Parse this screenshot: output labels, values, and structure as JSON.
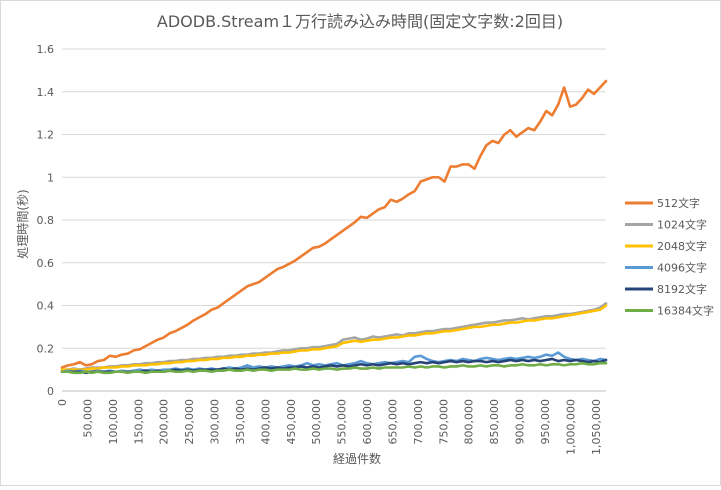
{
  "chart_data": {
    "type": "line",
    "title": "ADODB.Stream１万行読み込み時間(固定文字数:2回目)",
    "xlabel": "経過件数",
    "ylabel": "処理時間(秒)",
    "ylim": [
      0,
      1.6
    ],
    "yticks": [
      "0",
      "0.2",
      "0.4",
      "0.6",
      "0.8",
      "1",
      "1.2",
      "1.4",
      "1.6"
    ],
    "xlim": [
      0,
      1070000
    ],
    "xticks": [
      "0",
      "50,000",
      "100,000",
      "150,000",
      "200,000",
      "250,000",
      "300,000",
      "350,000",
      "400,000",
      "450,000",
      "500,000",
      "550,000",
      "600,000",
      "650,000",
      "700,000",
      "750,000",
      "800,000",
      "850,000",
      "900,000",
      "950,000",
      "1,000,000",
      "1,050,000"
    ],
    "grid": "horizontal",
    "legend_position": "right",
    "series": [
      {
        "name": "512文字",
        "color": "#ED7D31",
        "values": [
          0.11,
          0.12,
          0.125,
          0.135,
          0.12,
          0.125,
          0.14,
          0.145,
          0.165,
          0.16,
          0.17,
          0.175,
          0.19,
          0.195,
          0.21,
          0.225,
          0.24,
          0.25,
          0.27,
          0.28,
          0.295,
          0.31,
          0.33,
          0.345,
          0.36,
          0.38,
          0.39,
          0.41,
          0.43,
          0.45,
          0.47,
          0.49,
          0.5,
          0.51,
          0.53,
          0.55,
          0.57,
          0.58,
          0.595,
          0.61,
          0.63,
          0.65,
          0.67,
          0.675,
          0.69,
          0.71,
          0.73,
          0.75,
          0.77,
          0.79,
          0.815,
          0.81,
          0.83,
          0.85,
          0.86,
          0.895,
          0.885,
          0.9,
          0.92,
          0.935,
          0.98,
          0.99,
          1.0,
          1.0,
          0.98,
          1.05,
          1.05,
          1.06,
          1.06,
          1.04,
          1.1,
          1.15,
          1.17,
          1.16,
          1.2,
          1.22,
          1.19,
          1.21,
          1.23,
          1.22,
          1.26,
          1.31,
          1.29,
          1.34,
          1.42,
          1.33,
          1.34,
          1.37,
          1.41,
          1.39,
          1.42,
          1.45
        ]
      },
      {
        "name": "1024文字",
        "color": "#A5A5A5",
        "values": [
          0.1,
          0.1,
          0.105,
          0.1,
          0.105,
          0.11,
          0.11,
          0.11,
          0.115,
          0.115,
          0.12,
          0.12,
          0.125,
          0.125,
          0.13,
          0.13,
          0.135,
          0.135,
          0.14,
          0.14,
          0.145,
          0.145,
          0.15,
          0.15,
          0.155,
          0.155,
          0.16,
          0.16,
          0.165,
          0.165,
          0.17,
          0.17,
          0.175,
          0.175,
          0.18,
          0.18,
          0.185,
          0.19,
          0.19,
          0.195,
          0.2,
          0.2,
          0.205,
          0.205,
          0.21,
          0.215,
          0.22,
          0.24,
          0.245,
          0.25,
          0.24,
          0.245,
          0.255,
          0.25,
          0.255,
          0.26,
          0.265,
          0.26,
          0.27,
          0.27,
          0.275,
          0.28,
          0.28,
          0.285,
          0.29,
          0.29,
          0.295,
          0.3,
          0.305,
          0.31,
          0.315,
          0.32,
          0.32,
          0.325,
          0.33,
          0.33,
          0.335,
          0.34,
          0.335,
          0.34,
          0.345,
          0.35,
          0.35,
          0.355,
          0.36,
          0.36,
          0.365,
          0.37,
          0.375,
          0.38,
          0.39,
          0.41
        ]
      },
      {
        "name": "2048文字",
        "color": "#FFC000",
        "values": [
          0.1,
          0.1,
          0.1,
          0.1,
          0.1,
          0.105,
          0.105,
          0.11,
          0.11,
          0.11,
          0.115,
          0.115,
          0.12,
          0.12,
          0.12,
          0.125,
          0.125,
          0.13,
          0.13,
          0.135,
          0.135,
          0.14,
          0.14,
          0.145,
          0.145,
          0.15,
          0.15,
          0.155,
          0.155,
          0.16,
          0.16,
          0.165,
          0.165,
          0.17,
          0.17,
          0.175,
          0.175,
          0.18,
          0.18,
          0.185,
          0.19,
          0.19,
          0.195,
          0.195,
          0.2,
          0.205,
          0.21,
          0.225,
          0.23,
          0.235,
          0.23,
          0.235,
          0.24,
          0.24,
          0.245,
          0.25,
          0.25,
          0.255,
          0.26,
          0.26,
          0.265,
          0.27,
          0.27,
          0.275,
          0.28,
          0.28,
          0.285,
          0.29,
          0.295,
          0.3,
          0.3,
          0.305,
          0.31,
          0.31,
          0.315,
          0.32,
          0.32,
          0.325,
          0.33,
          0.33,
          0.335,
          0.34,
          0.34,
          0.345,
          0.35,
          0.355,
          0.36,
          0.365,
          0.37,
          0.375,
          0.38,
          0.4
        ]
      },
      {
        "name": "4096文字",
        "color": "#5B9BD5",
        "values": [
          0.09,
          0.095,
          0.09,
          0.095,
          0.09,
          0.09,
          0.095,
          0.09,
          0.095,
          0.09,
          0.095,
          0.09,
          0.095,
          0.1,
          0.095,
          0.1,
          0.095,
          0.1,
          0.1,
          0.105,
          0.1,
          0.105,
          0.1,
          0.105,
          0.1,
          0.105,
          0.1,
          0.105,
          0.11,
          0.105,
          0.11,
          0.12,
          0.11,
          0.115,
          0.11,
          0.115,
          0.11,
          0.115,
          0.12,
          0.115,
          0.12,
          0.13,
          0.12,
          0.125,
          0.12,
          0.125,
          0.13,
          0.12,
          0.125,
          0.13,
          0.14,
          0.13,
          0.125,
          0.13,
          0.135,
          0.13,
          0.135,
          0.14,
          0.135,
          0.16,
          0.165,
          0.15,
          0.14,
          0.135,
          0.14,
          0.145,
          0.14,
          0.15,
          0.145,
          0.14,
          0.15,
          0.155,
          0.15,
          0.145,
          0.15,
          0.155,
          0.15,
          0.155,
          0.16,
          0.155,
          0.16,
          0.17,
          0.165,
          0.18,
          0.16,
          0.15,
          0.145,
          0.15,
          0.145,
          0.14,
          0.15,
          0.145
        ]
      },
      {
        "name": "8192文字",
        "color": "#264478",
        "values": [
          0.09,
          0.09,
          0.09,
          0.09,
          0.085,
          0.09,
          0.09,
          0.09,
          0.09,
          0.09,
          0.09,
          0.09,
          0.09,
          0.09,
          0.095,
          0.09,
          0.095,
          0.09,
          0.095,
          0.1,
          0.095,
          0.1,
          0.095,
          0.1,
          0.1,
          0.1,
          0.1,
          0.105,
          0.1,
          0.105,
          0.1,
          0.105,
          0.1,
          0.105,
          0.11,
          0.105,
          0.11,
          0.105,
          0.11,
          0.11,
          0.115,
          0.11,
          0.115,
          0.11,
          0.115,
          0.12,
          0.115,
          0.12,
          0.115,
          0.12,
          0.125,
          0.12,
          0.125,
          0.12,
          0.125,
          0.13,
          0.125,
          0.13,
          0.125,
          0.13,
          0.135,
          0.13,
          0.135,
          0.13,
          0.135,
          0.14,
          0.135,
          0.14,
          0.135,
          0.14,
          0.14,
          0.135,
          0.14,
          0.135,
          0.14,
          0.145,
          0.14,
          0.145,
          0.14,
          0.145,
          0.14,
          0.145,
          0.15,
          0.14,
          0.145,
          0.14,
          0.145,
          0.14,
          0.135,
          0.14,
          0.135,
          0.145
        ]
      },
      {
        "name": "16384文字",
        "color": "#70AD47",
        "values": [
          0.09,
          0.09,
          0.085,
          0.085,
          0.09,
          0.085,
          0.09,
          0.085,
          0.085,
          0.09,
          0.09,
          0.085,
          0.09,
          0.09,
          0.085,
          0.09,
          0.09,
          0.09,
          0.095,
          0.09,
          0.09,
          0.095,
          0.09,
          0.095,
          0.095,
          0.09,
          0.095,
          0.095,
          0.1,
          0.095,
          0.095,
          0.1,
          0.095,
          0.1,
          0.1,
          0.095,
          0.1,
          0.1,
          0.1,
          0.105,
          0.1,
          0.1,
          0.105,
          0.1,
          0.105,
          0.105,
          0.1,
          0.105,
          0.105,
          0.11,
          0.105,
          0.105,
          0.11,
          0.105,
          0.11,
          0.11,
          0.11,
          0.11,
          0.115,
          0.11,
          0.115,
          0.11,
          0.115,
          0.115,
          0.11,
          0.115,
          0.115,
          0.12,
          0.115,
          0.115,
          0.12,
          0.115,
          0.12,
          0.12,
          0.115,
          0.12,
          0.12,
          0.125,
          0.12,
          0.12,
          0.125,
          0.12,
          0.125,
          0.125,
          0.12,
          0.125,
          0.125,
          0.13,
          0.125,
          0.125,
          0.13,
          0.13
        ]
      }
    ]
  }
}
